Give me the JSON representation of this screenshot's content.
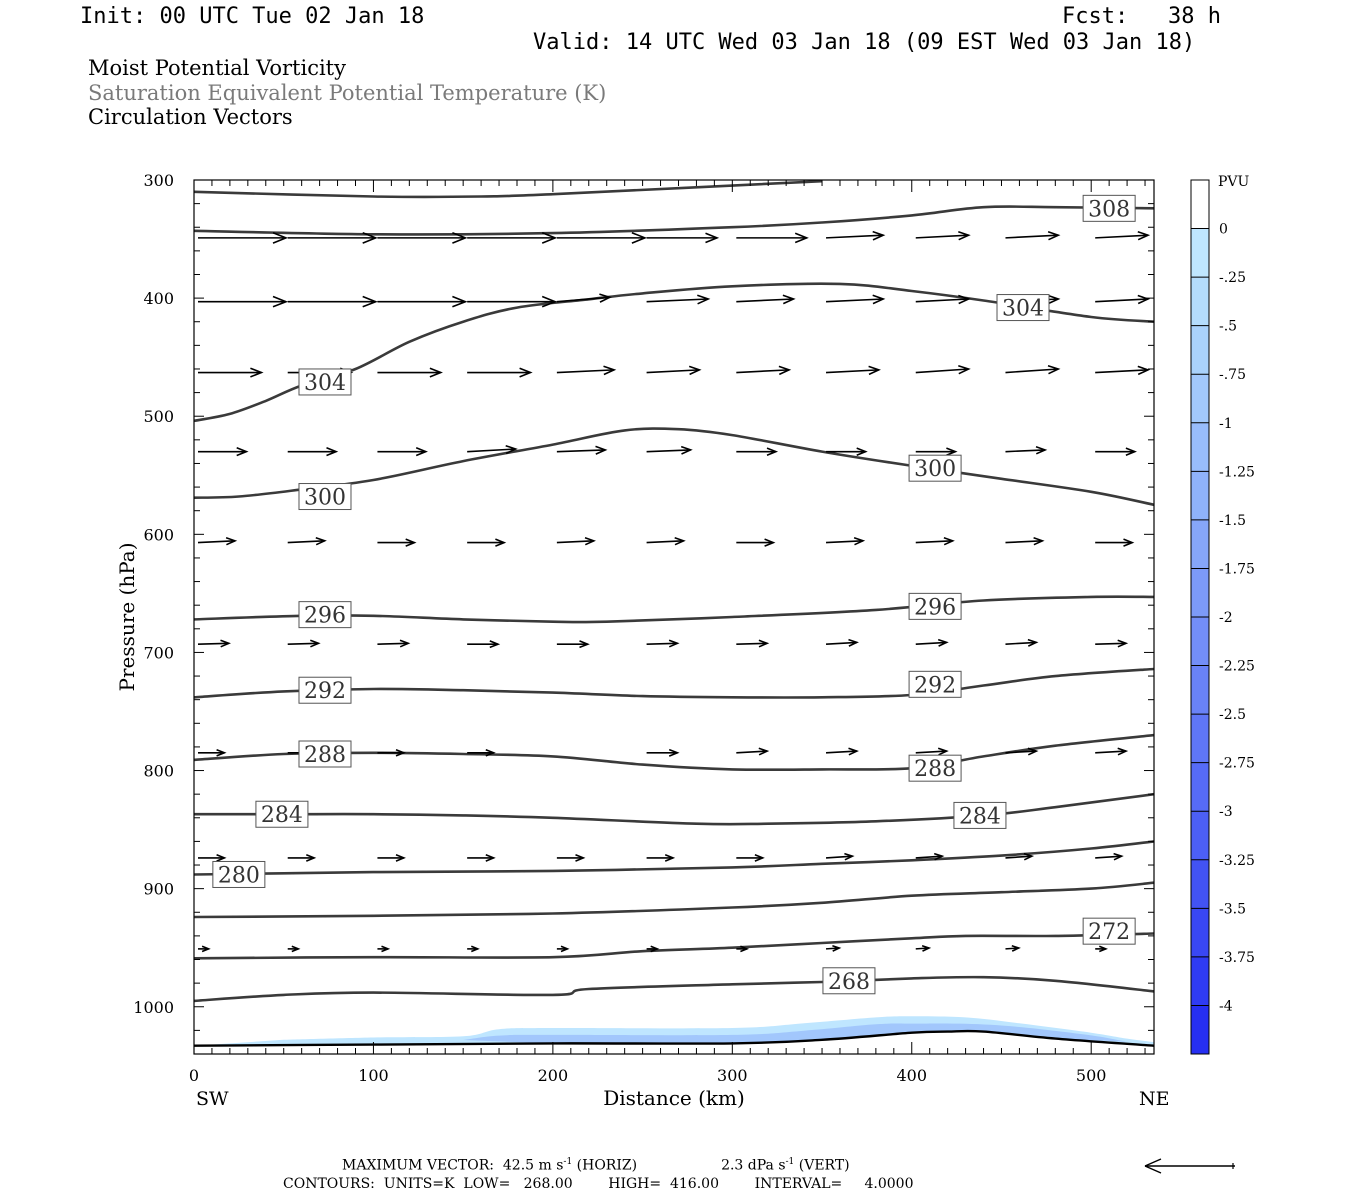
{
  "header": {
    "init": "Init: 00 UTC Tue 02 Jan 18",
    "fcst": "Fcst:   38 h",
    "valid": "Valid: 14 UTC Wed 03 Jan 18 (09 EST Wed 03 Jan 18)"
  },
  "titles": [
    "Moist Potential Vorticity",
    "Saturation Equivalent Potential Temperature (K)",
    "Circulation Vectors"
  ],
  "colors": {
    "title_gray": "#7a7a7a",
    "contour": "#3a3a3a",
    "vector": "#000000",
    "pv_scale": [
      "#ffffff",
      "#ffffff",
      "#bfe6ff",
      "#b4dcfc",
      "#aad2fb",
      "#a2c8fb",
      "#98bcfb",
      "#8fb2fa",
      "#86a6f9",
      "#7c9af8",
      "#738ef8",
      "#6982f7",
      "#5f76f6",
      "#566bf6",
      "#4c5ff5",
      "#4253f4",
      "#3947f4",
      "#2f3bf3",
      "#262ff2",
      "#1a1af1"
    ]
  },
  "chart_data": {
    "type": "cross-section contour",
    "xlabel": "Distance (km)",
    "ylabel": "Pressure (hPa)",
    "xlim": [
      0,
      535
    ],
    "ylim": [
      1040,
      300
    ],
    "x_ticks": [
      0,
      100,
      200,
      300,
      400,
      500
    ],
    "y_ticks": [
      300,
      400,
      500,
      600,
      700,
      800,
      900,
      1000
    ],
    "x_end_labels": {
      "left": "SW",
      "right": "NE"
    },
    "colorbar": {
      "unit": "PVU",
      "labels": [
        "0",
        "-.25",
        "-.5",
        "-.75",
        "-1",
        "-1.25",
        "-1.5",
        "-1.75",
        "-2",
        "-2.25",
        "-2.5",
        "-2.75",
        "-3",
        "-3.25",
        "-3.5",
        "-3.75",
        "-4"
      ]
    },
    "contours": [
      {
        "level": 308,
        "points": [
          [
            0,
            310
          ],
          [
            100,
            314
          ],
          [
            160,
            314
          ],
          [
            200,
            312
          ],
          [
            350,
            301
          ]
        ]
      },
      {
        "level": 308,
        "label": "308",
        "label_at": [
          510,
          324
        ],
        "points": [
          [
            0,
            343
          ],
          [
            100,
            346
          ],
          [
            200,
            345
          ],
          [
            300,
            340
          ],
          [
            350,
            336
          ],
          [
            400,
            330
          ],
          [
            440,
            323
          ],
          [
            480,
            323
          ],
          [
            535,
            324
          ]
        ]
      },
      {
        "level": 304,
        "label": "304",
        "label_at": [
          73,
          471
        ],
        "points": [
          [
            0,
            504
          ],
          [
            20,
            498
          ],
          [
            40,
            487
          ],
          [
            60,
            474
          ],
          [
            90,
            460
          ],
          [
            120,
            437
          ],
          [
            150,
            420
          ],
          [
            180,
            408
          ],
          [
            220,
            401
          ],
          [
            250,
            396
          ],
          [
            300,
            390
          ],
          [
            360,
            388
          ],
          [
            400,
            394
          ],
          [
            440,
            402
          ],
          [
            500,
            416
          ],
          [
            535,
            420
          ]
        ]
      },
      {
        "level": 304,
        "label": "304",
        "label_at": [
          462,
          408
        ]
      },
      {
        "level": 300,
        "label": "300",
        "label_at": [
          73,
          568
        ],
        "points": [
          [
            0,
            569
          ],
          [
            25,
            568
          ],
          [
            60,
            562
          ],
          [
            100,
            554
          ],
          [
            150,
            538
          ],
          [
            200,
            524
          ],
          [
            240,
            512
          ],
          [
            270,
            511
          ],
          [
            300,
            516
          ],
          [
            350,
            530
          ],
          [
            400,
            542
          ],
          [
            450,
            553
          ],
          [
            500,
            564
          ],
          [
            535,
            575
          ]
        ]
      },
      {
        "level": 300,
        "label": "300",
        "label_at": [
          413,
          544
        ]
      },
      {
        "level": 296,
        "label": "296",
        "label_at": [
          73,
          668
        ],
        "points": [
          [
            0,
            672
          ],
          [
            60,
            669
          ],
          [
            100,
            669
          ],
          [
            150,
            672
          ],
          [
            200,
            674
          ],
          [
            230,
            674
          ],
          [
            300,
            670
          ],
          [
            380,
            664
          ],
          [
            440,
            656
          ],
          [
            500,
            653
          ],
          [
            535,
            653
          ]
        ]
      },
      {
        "level": 296,
        "label": "296",
        "label_at": [
          413,
          661
        ]
      },
      {
        "level": 292,
        "label": "292",
        "label_at": [
          73,
          732
        ],
        "points": [
          [
            0,
            738
          ],
          [
            50,
            733
          ],
          [
            100,
            731
          ],
          [
            150,
            732
          ],
          [
            200,
            734
          ],
          [
            250,
            737
          ],
          [
            300,
            738
          ],
          [
            350,
            738
          ],
          [
            400,
            736
          ],
          [
            440,
            728
          ],
          [
            480,
            720
          ],
          [
            535,
            714
          ]
        ]
      },
      {
        "level": 292,
        "label": "292",
        "label_at": [
          413,
          727
        ]
      },
      {
        "level": 288,
        "label": "288",
        "label_at": [
          73,
          786
        ],
        "points": [
          [
            0,
            791
          ],
          [
            50,
            786
          ],
          [
            100,
            785
          ],
          [
            150,
            786
          ],
          [
            200,
            788
          ],
          [
            250,
            795
          ],
          [
            300,
            799
          ],
          [
            350,
            799
          ],
          [
            400,
            798
          ],
          [
            440,
            788
          ],
          [
            480,
            779
          ],
          [
            535,
            770
          ]
        ]
      },
      {
        "level": 288,
        "label": "288",
        "label_at": [
          413,
          798
        ]
      },
      {
        "level": 284,
        "label": "284",
        "label_at": [
          49,
          837
        ],
        "points": [
          [
            0,
            837
          ],
          [
            50,
            837
          ],
          [
            100,
            837
          ],
          [
            150,
            838
          ],
          [
            200,
            840
          ],
          [
            280,
            845
          ],
          [
            320,
            845
          ],
          [
            380,
            843
          ],
          [
            440,
            838
          ],
          [
            480,
            831
          ],
          [
            535,
            820
          ]
        ]
      },
      {
        "level": 284,
        "label": "284",
        "label_at": [
          438,
          838
        ]
      },
      {
        "level": 280,
        "label": "280",
        "label_at": [
          25,
          888
        ],
        "points": [
          [
            0,
            888
          ],
          [
            50,
            887
          ],
          [
            100,
            886
          ],
          [
            200,
            885
          ],
          [
            300,
            882
          ],
          [
            350,
            879
          ],
          [
            400,
            876
          ],
          [
            450,
            872
          ],
          [
            500,
            866
          ],
          [
            535,
            860
          ]
        ]
      },
      {
        "level": 276,
        "points": [
          [
            0,
            924
          ],
          [
            100,
            923
          ],
          [
            200,
            921
          ],
          [
            300,
            916
          ],
          [
            350,
            912
          ],
          [
            400,
            906
          ],
          [
            450,
            903
          ],
          [
            500,
            900
          ],
          [
            535,
            895
          ]
        ]
      },
      {
        "level": 272,
        "label": "272",
        "label_at": [
          510,
          936
        ],
        "points": [
          [
            0,
            959
          ],
          [
            100,
            958
          ],
          [
            200,
            958
          ],
          [
            250,
            953
          ],
          [
            300,
            950
          ],
          [
            350,
            946
          ],
          [
            400,
            942
          ],
          [
            430,
            940
          ],
          [
            480,
            940
          ],
          [
            535,
            938
          ]
        ]
      },
      {
        "level": 268,
        "label": "268",
        "label_at": [
          365,
          978
        ],
        "points": [
          [
            0,
            995
          ],
          [
            50,
            990
          ],
          [
            100,
            988
          ],
          [
            200,
            990
          ],
          [
            220,
            985
          ],
          [
            300,
            981
          ],
          [
            350,
            979
          ],
          [
            400,
            976
          ],
          [
            440,
            975
          ],
          [
            480,
            978
          ],
          [
            535,
            987
          ]
        ]
      }
    ],
    "surface": [
      [
        0,
        1033
      ],
      [
        100,
        1032
      ],
      [
        200,
        1031
      ],
      [
        300,
        1031
      ],
      [
        350,
        1028
      ],
      [
        400,
        1022
      ],
      [
        420,
        1021
      ],
      [
        440,
        1021
      ],
      [
        480,
        1027
      ],
      [
        535,
        1033
      ]
    ],
    "pv_shading": {
      "level": "-.25",
      "points": [
        [
          50,
          1028
        ],
        [
          100,
          1026
        ],
        [
          150,
          1025
        ],
        [
          170,
          1019
        ],
        [
          200,
          1018
        ],
        [
          300,
          1018
        ],
        [
          340,
          1014
        ],
        [
          380,
          1009
        ],
        [
          400,
          1008
        ],
        [
          430,
          1009
        ],
        [
          460,
          1014
        ],
        [
          500,
          1022
        ],
        [
          520,
          1027
        ],
        [
          535,
          1030
        ]
      ]
    },
    "vectors": [
      {
        "p": 349,
        "x": [
          0,
          50,
          100,
          150,
          200,
          250,
          300,
          350,
          400,
          450,
          500
        ],
        "u": [
          1,
          1,
          1,
          1,
          1,
          0.8,
          0.8,
          0.65,
          0.6,
          0.6,
          0.6
        ],
        "w": [
          0,
          0,
          0,
          0,
          0,
          0,
          0,
          0.03,
          0.03,
          0.03,
          0.03
        ]
      },
      {
        "p": 403,
        "x": [
          0,
          50,
          100,
          150,
          200,
          250,
          300,
          350,
          400,
          450,
          500
        ],
        "u": [
          1,
          1,
          1,
          1,
          0.6,
          0.7,
          0.65,
          0.65,
          0.6,
          0.6,
          0.6
        ],
        "w": [
          0,
          0,
          0,
          0,
          0.05,
          0.03,
          0.03,
          0.03,
          0.03,
          0.03,
          0.03
        ]
      },
      {
        "p": 463,
        "x": [
          0,
          50,
          100,
          150,
          200,
          250,
          300,
          350,
          400,
          450,
          500
        ],
        "u": [
          0.72,
          0.72,
          0.72,
          0.72,
          0.65,
          0.6,
          0.6,
          0.6,
          0.6,
          0.6,
          0.6
        ],
        "w": [
          0,
          0,
          0,
          0,
          0.03,
          0.03,
          0.03,
          0.03,
          0.04,
          0.04,
          0.03
        ]
      },
      {
        "p": 530,
        "x": [
          0,
          50,
          100,
          150,
          200,
          250,
          300,
          350,
          400,
          450,
          500
        ],
        "u": [
          0.55,
          0.55,
          0.55,
          0.55,
          0.55,
          0.5,
          0.45,
          0.45,
          0.45,
          0.45,
          0.45
        ],
        "w": [
          0,
          0,
          0,
          0.03,
          0.02,
          0.02,
          0,
          0,
          0,
          0.02,
          0
        ]
      },
      {
        "p": 607,
        "x": [
          0,
          50,
          100,
          150,
          200,
          250,
          300,
          350,
          400,
          450,
          500
        ],
        "u": [
          0.42,
          0.42,
          0.42,
          0.42,
          0.42,
          0.42,
          0.42,
          0.42,
          0.42,
          0.42,
          0.42
        ],
        "w": [
          0.02,
          0.02,
          0,
          0,
          0.02,
          0.02,
          0,
          0.02,
          0.02,
          0.02,
          0
        ]
      },
      {
        "p": 693,
        "x": [
          0,
          50,
          100,
          150,
          200,
          250,
          300,
          350,
          400,
          450,
          500
        ],
        "u": [
          0.35,
          0.35,
          0.35,
          0.35,
          0.35,
          0.35,
          0.35,
          0.35,
          0.35,
          0.35,
          0.35
        ],
        "w": [
          0.01,
          0.01,
          0.01,
          0,
          0,
          0.01,
          0.01,
          0.02,
          0.02,
          0.02,
          0.01
        ]
      },
      {
        "p": 785,
        "x": [
          0,
          50,
          100,
          150,
          200,
          250,
          300,
          350,
          400,
          450,
          500
        ],
        "u": [
          0.3,
          0.3,
          0.3,
          0.3,
          0,
          0.35,
          0.35,
          0.35,
          0.35,
          0.35,
          0.35
        ],
        "w": [
          0,
          0,
          0,
          0,
          0,
          0,
          0.02,
          0.02,
          0.02,
          0.02,
          0.02
        ]
      },
      {
        "p": 874,
        "x": [
          0,
          50,
          100,
          150,
          200,
          250,
          300,
          350,
          400,
          450,
          500
        ],
        "u": [
          0.3,
          0.3,
          0.3,
          0.3,
          0.3,
          0.3,
          0.3,
          0.3,
          0.3,
          0.3,
          0.3
        ],
        "w": [
          0,
          0,
          0,
          0,
          0,
          0,
          0,
          0.02,
          0.02,
          0.02,
          0.02
        ]
      },
      {
        "p": 951,
        "x": [
          0,
          50,
          100,
          150,
          200,
          250,
          300,
          350,
          400,
          450,
          500
        ],
        "u": [
          0.12,
          0.12,
          0.12,
          0.12,
          0.12,
          0.12,
          0.12,
          0.15,
          0.15,
          0.15,
          0.12
        ],
        "w": [
          0,
          0,
          0,
          0,
          0,
          0,
          0,
          0.01,
          0.01,
          0.01,
          0
        ]
      }
    ]
  },
  "footer": {
    "max_vector_prefix": "MAXIMUM VECTOR:  42.5 m s",
    "max_vector_exp": "-1",
    "max_vector_horiz": " (HORIZ)",
    "vert_prefix": "2.3 dPa s",
    "vert_exp": "-1",
    "vert_suffix": " (VERT)",
    "contours_line": "CONTOURS:  UNITS=K  LOW=   268.00        HIGH=  416.00        INTERVAL=     4.0000"
  }
}
